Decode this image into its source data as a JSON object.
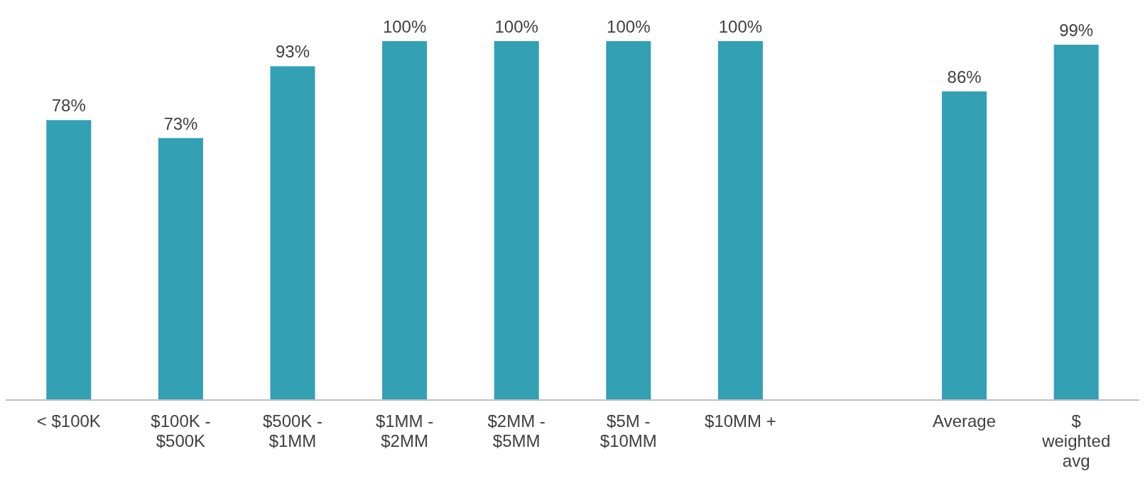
{
  "chart_data": {
    "type": "bar",
    "categories": [
      "< $100K",
      "$100K - $500K",
      "$500K - $1MM",
      "$1MM - $2MM",
      "$2MM - $5MM",
      "$5M - $10MM",
      "$10MM +",
      null,
      "Average",
      "$ weighted avg"
    ],
    "values": [
      78,
      73,
      93,
      100,
      100,
      100,
      100,
      null,
      86,
      99
    ],
    "value_labels": [
      "78%",
      "73%",
      "93%",
      "100%",
      "100%",
      "100%",
      "100%",
      null,
      "86%",
      "99%"
    ],
    "color": "#33a0b4",
    "relative": false
  }
}
